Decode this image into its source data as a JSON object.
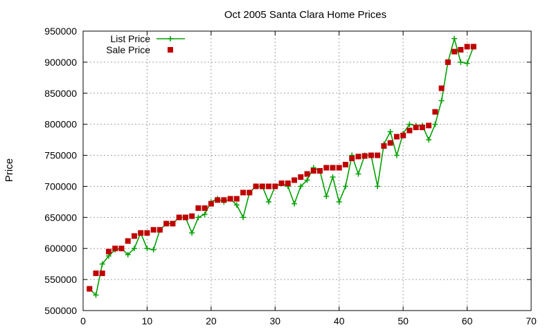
{
  "chart_data": {
    "type": "line",
    "title": "Oct 2005 Santa Clara Home Prices",
    "xlabel": "",
    "ylabel": "Price",
    "xlim": [
      0,
      70
    ],
    "ylim": [
      500000,
      950000
    ],
    "xticks": [
      0,
      10,
      20,
      30,
      40,
      50,
      60,
      70
    ],
    "yticks": [
      500000,
      550000,
      600000,
      650000,
      700000,
      750000,
      800000,
      850000,
      900000,
      950000
    ],
    "grid": true,
    "legend_position": "top-left",
    "series": [
      {
        "name": "List Price",
        "style": "lines+points",
        "color": "#00a000",
        "x": [
          1,
          2,
          3,
          4,
          5,
          6,
          7,
          8,
          9,
          10,
          11,
          12,
          13,
          14,
          15,
          16,
          17,
          18,
          19,
          20,
          21,
          22,
          23,
          24,
          25,
          26,
          27,
          28,
          29,
          30,
          31,
          32,
          33,
          34,
          35,
          36,
          37,
          38,
          39,
          40,
          41,
          42,
          43,
          44,
          45,
          46,
          47,
          48,
          49,
          50,
          51,
          52,
          53,
          54,
          55,
          56,
          57,
          58,
          59,
          60,
          61
        ],
        "y": [
          535000,
          525000,
          575000,
          588000,
          598000,
          600000,
          590000,
          600000,
          625000,
          600000,
          598000,
          630000,
          640000,
          640000,
          650000,
          650000,
          625000,
          650000,
          655000,
          675000,
          680000,
          675000,
          680000,
          670000,
          650000,
          690000,
          700000,
          700000,
          675000,
          700000,
          705000,
          700000,
          672000,
          700000,
          710000,
          730000,
          725000,
          684000,
          715000,
          675000,
          700000,
          750000,
          720000,
          750000,
          750000,
          700000,
          768000,
          788000,
          750000,
          785000,
          800000,
          798000,
          798000,
          775000,
          800000,
          838000,
          900000,
          938000,
          900000,
          898000,
          925000
        ]
      },
      {
        "name": "Sale Price",
        "style": "points",
        "color": "#c00000",
        "x": [
          1,
          2,
          3,
          4,
          5,
          6,
          7,
          8,
          9,
          10,
          11,
          12,
          13,
          14,
          15,
          16,
          17,
          18,
          19,
          20,
          21,
          22,
          23,
          24,
          25,
          26,
          27,
          28,
          29,
          30,
          31,
          32,
          33,
          34,
          35,
          36,
          37,
          38,
          39,
          40,
          41,
          42,
          43,
          44,
          45,
          46,
          47,
          48,
          49,
          50,
          51,
          52,
          53,
          54,
          55,
          56,
          57,
          58,
          59,
          60,
          61
        ],
        "y": [
          535000,
          560000,
          560000,
          595000,
          600000,
          600000,
          612000,
          620000,
          625000,
          625000,
          630000,
          630000,
          640000,
          640000,
          650000,
          650000,
          652000,
          665000,
          665000,
          672000,
          678000,
          678000,
          680000,
          680000,
          690000,
          690000,
          700000,
          700000,
          700000,
          700000,
          705000,
          705000,
          710000,
          715000,
          720000,
          725000,
          725000,
          730000,
          730000,
          730000,
          735000,
          745000,
          748000,
          749000,
          750000,
          750000,
          765000,
          770000,
          780000,
          782000,
          790000,
          795000,
          795000,
          798000,
          820000,
          858000,
          900000,
          917000,
          920000,
          925000,
          925000
        ]
      }
    ]
  }
}
